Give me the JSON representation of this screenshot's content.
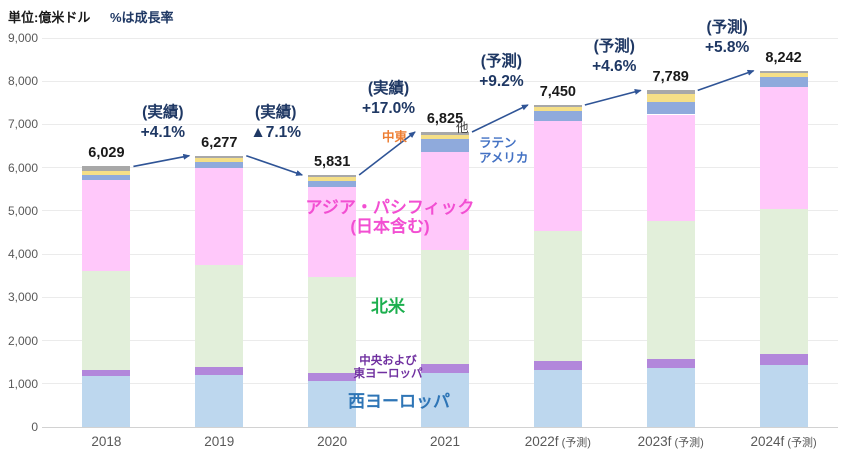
{
  "header": {
    "unit_label": "単位:億米ドル",
    "growth_note": "%は成長率"
  },
  "chart_data": {
    "type": "bar",
    "stacked": true,
    "title": "単位:億米ドル %は成長率",
    "categories": [
      "2018",
      "2019",
      "2020",
      "2021",
      "2022f",
      "2023f",
      "2024f"
    ],
    "category_suffix": [
      "",
      "",
      "",
      "",
      "(予測)",
      "(予測)",
      "(予測)"
    ],
    "totals": [
      6029,
      6277,
      5831,
      6825,
      7450,
      7789,
      8242
    ],
    "total_labels": [
      "6,029",
      "6,277",
      "5,831",
      "6,825",
      "7,450",
      "7,789",
      "8,242"
    ],
    "series": [
      {
        "name": "西ヨーロッパ",
        "color": "#BDD7EE",
        "values": [
          1170,
          1200,
          1060,
          1260,
          1330,
          1370,
          1440
        ]
      },
      {
        "name": "中央および東ヨーロッパ",
        "color": "#B287DB",
        "values": [
          160,
          180,
          190,
          190,
          200,
          210,
          250
        ]
      },
      {
        "name": "北米",
        "color": "#E2EFDA",
        "values": [
          2270,
          2370,
          2230,
          2650,
          3010,
          3180,
          3350
        ]
      },
      {
        "name": "アジア・パシフィック(日本含む)",
        "color": "#FFC8FA",
        "values": [
          2120,
          2240,
          2080,
          2260,
          2550,
          2470,
          2820
        ]
      },
      {
        "name": "ラテンアメリカ",
        "color": "#8FAADC",
        "values": [
          120,
          140,
          140,
          300,
          230,
          300,
          230
        ]
      },
      {
        "name": "中東",
        "color": "#F5DF87",
        "values": [
          80,
          85,
          80,
          100,
          90,
          170,
          95
        ]
      },
      {
        "name": "他",
        "color": "#A8A8A8",
        "values": [
          109,
          62,
          51,
          65,
          40,
          89,
          57
        ]
      }
    ],
    "growth_annotations": [
      {
        "label": "(実績)",
        "value": "+4.1%"
      },
      {
        "label": "(実績)",
        "value": "▲7.1%"
      },
      {
        "label": "(実績)",
        "value": "+17.0%"
      },
      {
        "label": "(予測)",
        "value": "+9.2%"
      },
      {
        "label": "(予測)",
        "value": "+4.6%"
      },
      {
        "label": "(予測)",
        "value": "+5.8%"
      }
    ],
    "ylim": [
      0,
      9000
    ],
    "ytick_step": 1000,
    "yticks": [
      "0",
      "1,000",
      "2,000",
      "3,000",
      "4,000",
      "5,000",
      "6,000",
      "7,000",
      "8,000",
      "9,000"
    ],
    "grid": true,
    "legend_position": "inline-labels"
  },
  "region_labels": {
    "asia": {
      "line1": "アジア・パシフィック",
      "line2": "(日本含む)",
      "color": "#F24FD2"
    },
    "north_america": {
      "line1": "北米",
      "color": "#1CAF4E"
    },
    "central_east_europe": {
      "line1": "中央および",
      "line2": "東ヨーロッパ",
      "color": "#7030A0"
    },
    "west_europe": {
      "line1": "西ヨーロッパ",
      "color": "#2E75B6"
    },
    "latin_america": {
      "line1": "ラテン",
      "line2": "アメリカ",
      "color": "#4472C4"
    },
    "middle_east": {
      "line1": "中東",
      "color": "#ED7D31"
    },
    "other": {
      "line1": "他",
      "color": "#3F3F3F"
    }
  },
  "style": {
    "annotation_color": "#1F3864",
    "arrow_color": "#2F5496",
    "note_color": "#1F3864",
    "total_label_color": "#1A1A1A",
    "axis_label_color": "#595959"
  }
}
